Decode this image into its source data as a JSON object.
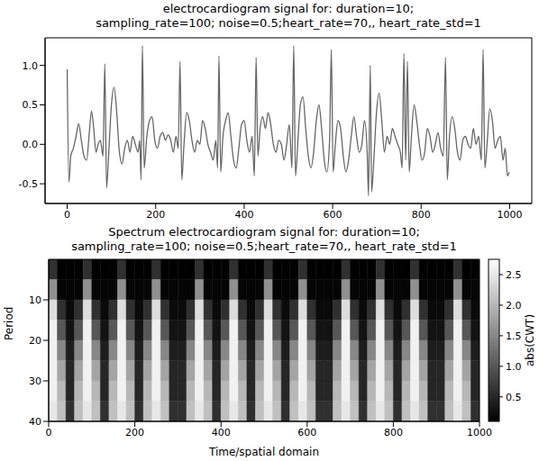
{
  "chart_data": [
    {
      "type": "line",
      "title": "electrocardiogram signal for: duration=10;\nsampling_rate=100; noise=0.5;heart_rate=70,, heart_rate_std=1",
      "color": "#666666",
      "x": [
        0,
        4,
        8,
        14,
        20,
        26,
        32,
        38,
        44,
        50,
        55,
        60,
        65,
        70,
        75,
        81,
        85,
        89,
        94,
        100,
        106,
        112,
        118,
        124,
        130,
        136,
        142,
        148,
        154,
        160,
        164,
        167,
        170,
        174,
        180,
        186,
        192,
        198,
        204,
        210,
        216,
        222,
        228,
        234,
        240,
        246,
        251,
        255,
        259,
        264,
        270,
        276,
        282,
        288,
        294,
        300,
        306,
        312,
        318,
        324,
        330,
        336,
        340,
        343,
        347,
        352,
        358,
        364,
        370,
        376,
        382,
        388,
        394,
        400,
        406,
        412,
        418,
        423,
        427,
        431,
        436,
        442,
        448,
        454,
        460,
        466,
        472,
        478,
        484,
        490,
        496,
        502,
        508,
        512,
        516,
        521,
        527,
        533,
        539,
        545,
        551,
        557,
        563,
        569,
        575,
        581,
        587,
        593,
        597,
        601,
        606,
        612,
        618,
        624,
        630,
        636,
        642,
        648,
        654,
        660,
        666,
        672,
        678,
        681,
        685,
        688,
        693,
        699,
        705,
        711,
        717,
        723,
        729,
        735,
        741,
        747,
        753,
        757,
        761,
        765,
        769,
        773,
        778,
        784,
        790,
        796,
        802,
        808,
        814,
        820,
        826,
        832,
        838,
        844,
        850,
        855,
        859,
        864,
        870,
        876,
        882,
        888,
        894,
        900,
        906,
        912,
        918,
        924,
        930,
        936,
        940,
        944,
        949,
        955,
        961,
        967,
        973,
        979,
        985,
        990,
        995,
        999
      ],
      "values": [
        0.95,
        -0.48,
        -0.15,
        -0.05,
        0.1,
        0.26,
        0.05,
        -0.15,
        -0.2,
        0.15,
        0.42,
        0.2,
        -0.1,
        0,
        0.05,
        -0.15,
        1.02,
        -0.55,
        -0.1,
        0.5,
        0.72,
        0.4,
        -0.1,
        -0.25,
        -0.05,
        0.05,
        -0.1,
        0.1,
        0,
        -0.1,
        0.05,
        -0.45,
        1.25,
        -0.3,
        0.1,
        0.3,
        0.35,
        0.05,
        -0.05,
        0.1,
        0.15,
        0.05,
        0.12,
        0.05,
        -0.1,
        0.1,
        -0.05,
        1.05,
        -0.45,
        0,
        0.4,
        0.3,
        0.05,
        -0.1,
        0.05,
        0,
        0.3,
        0.2,
        0,
        -0.1,
        -0.2,
        0.05,
        -0.3,
        1.12,
        -0.35,
        0.1,
        0.3,
        0.4,
        0.1,
        -0.2,
        -0.3,
        -0.05,
        0.25,
        0.3,
        0.05,
        -0.1,
        0.1,
        -0.4,
        1.1,
        -0.15,
        0.2,
        0.35,
        0.2,
        0.4,
        0.25,
        0,
        -0.1,
        0.05,
        0,
        -0.2,
        0,
        0.25,
        -0.3,
        1.25,
        -0.4,
        0,
        0.5,
        0.6,
        0.2,
        -0.15,
        -0.3,
        -0.1,
        0.3,
        0.5,
        0.2,
        -0.2,
        -0.35,
        0.05,
        1.2,
        -0.35,
        0,
        0.3,
        0.2,
        -0.15,
        -0.35,
        -0.2,
        0.1,
        0.35,
        0.1,
        -0.1,
        0,
        0.3,
        -0.1,
        -0.65,
        1,
        -0.6,
        -0.2,
        0.4,
        0.65,
        0.3,
        -0.1,
        0.1,
        0,
        0.2,
        0.1,
        0,
        -0.1,
        -0.3,
        1.15,
        -0.2,
        1.05,
        -0.35,
        0.1,
        0.5,
        0.3,
        0,
        -0.2,
        -0.1,
        0.2,
        0.1,
        -0.1,
        0,
        0.15,
        -0.05,
        -0.15,
        1.1,
        -0.45,
        0.1,
        0.35,
        0.2,
        -0.1,
        -0.2,
        0.05,
        0.1,
        0,
        -0.05,
        0.2,
        0,
        0.1,
        -0.2,
        1.2,
        -0.3,
        0,
        0.45,
        0.3,
        -0.05,
        0.05,
        0.1,
        -0.2,
        -0.05,
        -0.4,
        -0.35
      ],
      "xlim": [
        -50,
        1050
      ],
      "xticks": [
        0,
        200,
        400,
        600,
        800,
        1000
      ],
      "ylim": [
        -0.75,
        1.35
      ],
      "yticks": [
        -0.5,
        {
          "value": 0,
          "label": "0.0"
        },
        0.5,
        {
          "value": 1,
          "label": "1.0"
        }
      ]
    },
    {
      "type": "heatmap",
      "title": "Spectrum electrocardiogram signal for: duration=10;\nsampling_rate=100; noise=0.5;heart_rate=70,, heart_rate_std=1",
      "x_label": "Time/spatial domain",
      "y_label": "Period",
      "xlim": [
        0,
        1000
      ],
      "xticks": [
        0,
        200,
        400,
        600,
        800,
        1000
      ],
      "ylim": [
        0,
        40
      ],
      "yticks": [
        10,
        20,
        30,
        40
      ],
      "x_bins": [
        0,
        20,
        40,
        60,
        80,
        100,
        120,
        140,
        160,
        180,
        200,
        220,
        240,
        260,
        280,
        300,
        320,
        340,
        360,
        380,
        400,
        420,
        440,
        460,
        480,
        500,
        520,
        540,
        560,
        580,
        600,
        620,
        640,
        660,
        680,
        700,
        720,
        740,
        760,
        780,
        800,
        820,
        840,
        860,
        880,
        900,
        920,
        940,
        960,
        980,
        1000
      ],
      "y_bins": [
        0,
        5,
        10,
        15,
        20,
        25,
        30,
        35,
        40
      ],
      "cells": [
        [
          0.6,
          0.1,
          0.1,
          0.1,
          0.6,
          0.1,
          0.1,
          0.1,
          0.6,
          0.1,
          0.1,
          0.1,
          0.6,
          0.1,
          0.1,
          0.1,
          0.1,
          0.6,
          0.1,
          0.1,
          0.1,
          0.6,
          0.1,
          0.1,
          0.1,
          0.6,
          0.1,
          0.1,
          0.1,
          0.6,
          0.1,
          0.1,
          0.1,
          0.1,
          0.6,
          0.1,
          0.1,
          0.1,
          0.6,
          0.1,
          0.1,
          0.1,
          0.6,
          0.1,
          0.1,
          0.1,
          0.1,
          0.6,
          0.1,
          0.1
        ],
        [
          1.6,
          0.15,
          0.15,
          0.15,
          1.6,
          0.15,
          0.15,
          0.15,
          1.6,
          0.15,
          0.15,
          0.15,
          1.6,
          0.15,
          0.15,
          0.15,
          0.15,
          1.6,
          0.15,
          0.15,
          0.15,
          1.6,
          0.15,
          0.15,
          0.15,
          1.6,
          0.15,
          0.15,
          0.15,
          1.6,
          0.15,
          0.15,
          0.15,
          0.15,
          1.6,
          0.15,
          0.15,
          0.15,
          1.6,
          0.15,
          0.15,
          0.15,
          1.6,
          0.15,
          0.15,
          0.15,
          0.15,
          1.6,
          0.15,
          0.15
        ],
        [
          2.4,
          0.6,
          0.2,
          0.6,
          2.4,
          0.6,
          0.2,
          0.6,
          2.4,
          0.6,
          0.2,
          0.6,
          2.4,
          0.6,
          0.2,
          0.2,
          0.6,
          2.4,
          0.6,
          0.2,
          0.6,
          2.4,
          0.6,
          0.2,
          0.6,
          2.4,
          0.6,
          0.2,
          0.6,
          2.4,
          0.6,
          0.2,
          0.2,
          0.6,
          2.4,
          0.6,
          0.2,
          0.6,
          2.4,
          0.6,
          0.2,
          0.6,
          2.4,
          0.6,
          0.2,
          0.2,
          0.6,
          2.4,
          0.6,
          0.2
        ],
        [
          2.6,
          1,
          0.3,
          1,
          2.6,
          1,
          0.3,
          1,
          2.6,
          1,
          0.3,
          1,
          2.6,
          1,
          0.3,
          0.3,
          1,
          2.6,
          1,
          0.3,
          1,
          2.6,
          1,
          0.3,
          1,
          2.6,
          1,
          0.3,
          1,
          2.6,
          1,
          0.3,
          0.3,
          1,
          2.6,
          1,
          0.3,
          1,
          2.6,
          1,
          0.3,
          1,
          2.6,
          1,
          0.3,
          0.3,
          1,
          2.6,
          1,
          0.3
        ],
        [
          2.6,
          1.5,
          0.4,
          1.5,
          2.6,
          1.5,
          0.4,
          1.5,
          2.6,
          1.5,
          0.4,
          1.5,
          2.6,
          1.5,
          0.4,
          0.4,
          1.5,
          2.6,
          1.5,
          0.4,
          1.5,
          2.6,
          1.5,
          0.4,
          1.5,
          2.6,
          1.5,
          0.4,
          1.5,
          2.6,
          1.5,
          0.4,
          0.4,
          1.5,
          2.6,
          1.5,
          0.4,
          1.5,
          2.6,
          1.5,
          0.4,
          1.5,
          2.6,
          1.5,
          0.4,
          0.4,
          1.5,
          2.6,
          1.5,
          0.4
        ],
        [
          2.6,
          1.8,
          0.5,
          1.8,
          2.6,
          1.8,
          0.5,
          1.8,
          2.6,
          1.8,
          0.5,
          1.8,
          2.6,
          1.8,
          0.5,
          0.5,
          1.8,
          2.6,
          1.8,
          0.5,
          1.8,
          2.6,
          1.8,
          0.5,
          1.8,
          2.6,
          1.8,
          0.5,
          1.8,
          2.6,
          1.8,
          0.5,
          0.5,
          1.8,
          2.6,
          1.8,
          0.5,
          1.8,
          2.6,
          1.8,
          0.5,
          1.8,
          2.6,
          1.8,
          0.5,
          0.5,
          1.8,
          2.6,
          1.8,
          0.5
        ],
        [
          2.6,
          2,
          0.5,
          2,
          2.6,
          2,
          0.5,
          2,
          2.6,
          2,
          0.5,
          2,
          2.6,
          2,
          0.5,
          0.5,
          2,
          2.6,
          2,
          0.5,
          2,
          2.6,
          2,
          0.5,
          2,
          2.6,
          2,
          0.5,
          2,
          2.6,
          2,
          0.5,
          0.5,
          2,
          2.6,
          2,
          0.5,
          2,
          2.6,
          2,
          0.5,
          2,
          2.6,
          2,
          0.5,
          0.5,
          2,
          2.6,
          2,
          0.5
        ],
        [
          2.5,
          2.1,
          0.6,
          2.1,
          2.5,
          2.1,
          0.6,
          2.1,
          2.5,
          2.1,
          0.6,
          2.1,
          2.5,
          2.1,
          0.6,
          0.6,
          2.1,
          2.5,
          2.1,
          0.6,
          2.1,
          2.5,
          2.1,
          0.6,
          2.1,
          2.5,
          2.1,
          0.6,
          2.1,
          2.5,
          2.1,
          0.6,
          0.6,
          2.1,
          2.5,
          2.1,
          0.6,
          2.1,
          2.5,
          2.1,
          0.6,
          2.1,
          2.5,
          2.1,
          0.6,
          0.6,
          2.1,
          2.5,
          2.1,
          0.6
        ]
      ],
      "colorbar": {
        "label": "abs(CWT)",
        "range": [
          0.1,
          2.75
        ],
        "ticks": [
          0.5,
          {
            "value": 1,
            "label": "1.0"
          },
          1.5,
          {
            "value": 2,
            "label": "2.0"
          },
          2.5
        ]
      }
    }
  ]
}
